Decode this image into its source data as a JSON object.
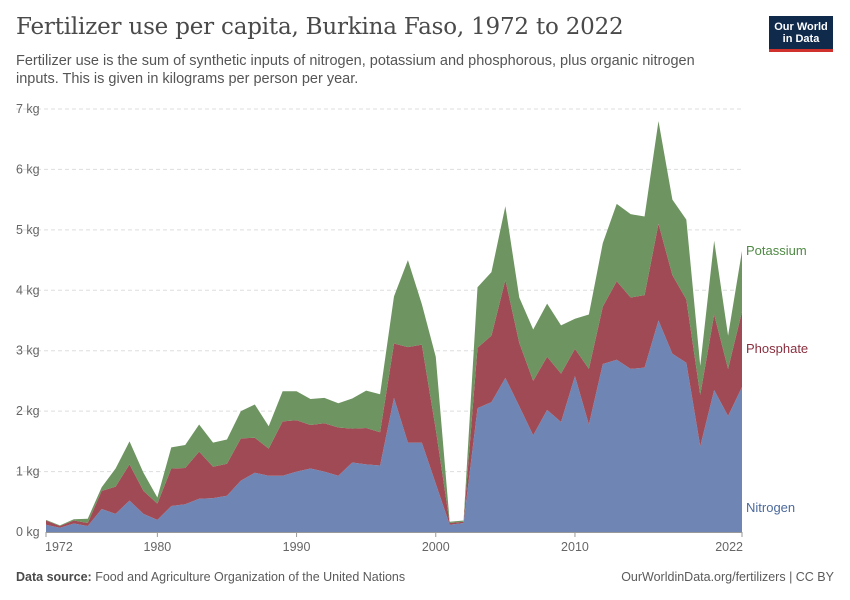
{
  "header": {
    "title": "Fertilizer use per capita, Burkina Faso, 1972 to 2022",
    "subtitle": "Fertilizer use is the sum of synthetic inputs of nitrogen, potassium and phosphorous, plus organic nitrogen inputs. This is given in kilograms per person per year.",
    "logo_line1": "Our World",
    "logo_line2": "in Data"
  },
  "footer": {
    "source_label": "Data source:",
    "source_text": "Food and Agriculture Organization of the United Nations",
    "url": "OurWorldinData.org/fertilizers | CC BY"
  },
  "colors": {
    "Nitrogen": "#6f86b4",
    "Phosphate": "#a04a55",
    "Potassium": "#6e9461",
    "NitrogenLabel": "#4c6a9c",
    "PhosphateLabel": "#8a2f3f",
    "PotassiumLabel": "#4f8a44",
    "grid": "#dddddd"
  },
  "chart_data": {
    "type": "area",
    "stacked": true,
    "title": "Fertilizer use per capita, Burkina Faso, 1972 to 2022",
    "xlabel": "",
    "ylabel": "",
    "xlim": [
      1972,
      2022
    ],
    "ylim": [
      0,
      7
    ],
    "y_ticks": [
      0,
      1,
      2,
      3,
      4,
      5,
      6,
      7
    ],
    "y_tick_labels": [
      "0 kg",
      "1 kg",
      "2 kg",
      "3 kg",
      "4 kg",
      "5 kg",
      "6 kg",
      "7 kg"
    ],
    "x_ticks": [
      1972,
      1980,
      1990,
      2000,
      2010,
      2022
    ],
    "x_tick_labels": [
      "1972",
      "1980",
      "1990",
      "2000",
      "2010",
      "2022"
    ],
    "x": [
      1972,
      1973,
      1974,
      1975,
      1976,
      1977,
      1978,
      1979,
      1980,
      1981,
      1982,
      1983,
      1984,
      1985,
      1986,
      1987,
      1988,
      1989,
      1990,
      1991,
      1992,
      1993,
      1994,
      1995,
      1996,
      1997,
      1998,
      1999,
      2000,
      2001,
      2002,
      2003,
      2004,
      2005,
      2006,
      2007,
      2008,
      2009,
      2010,
      2011,
      2012,
      2013,
      2014,
      2015,
      2016,
      2017,
      2018,
      2019,
      2020,
      2021,
      2022
    ],
    "series": [
      {
        "name": "Nitrogen",
        "values": [
          0.12,
          0.07,
          0.14,
          0.1,
          0.38,
          0.3,
          0.52,
          0.3,
          0.2,
          0.43,
          0.46,
          0.55,
          0.56,
          0.6,
          0.85,
          0.98,
          0.93,
          0.93,
          1.0,
          1.05,
          1.0,
          0.93,
          1.15,
          1.12,
          1.1,
          2.22,
          1.48,
          1.48,
          0.8,
          0.12,
          0.15,
          2.05,
          2.15,
          2.55,
          2.08,
          1.6,
          2.02,
          1.82,
          2.58,
          1.78,
          2.78,
          2.85,
          2.7,
          2.72,
          3.5,
          2.95,
          2.8,
          1.42,
          2.35,
          1.92,
          2.4
        ]
      },
      {
        "name": "Phosphate",
        "values": [
          0.07,
          0.03,
          0.05,
          0.05,
          0.3,
          0.45,
          0.6,
          0.38,
          0.27,
          0.62,
          0.6,
          0.78,
          0.52,
          0.53,
          0.7,
          0.58,
          0.45,
          0.9,
          0.85,
          0.72,
          0.8,
          0.8,
          0.56,
          0.6,
          0.55,
          0.9,
          1.58,
          1.62,
          0.9,
          0.03,
          0.02,
          1.0,
          1.1,
          1.62,
          1.05,
          0.9,
          0.88,
          0.8,
          0.45,
          0.92,
          0.95,
          1.3,
          1.18,
          1.2,
          1.6,
          1.3,
          1.05,
          0.85,
          1.25,
          0.78,
          1.25
        ]
      },
      {
        "name": "Potassium",
        "values": [
          0.01,
          0.01,
          0.02,
          0.07,
          0.06,
          0.3,
          0.38,
          0.3,
          0.1,
          0.35,
          0.38,
          0.45,
          0.4,
          0.4,
          0.45,
          0.55,
          0.37,
          0.5,
          0.48,
          0.43,
          0.42,
          0.4,
          0.5,
          0.62,
          0.63,
          0.78,
          1.44,
          0.67,
          1.2,
          0.02,
          0.02,
          1.0,
          1.05,
          1.22,
          0.75,
          0.85,
          0.88,
          0.8,
          0.5,
          0.9,
          1.05,
          1.28,
          1.38,
          1.3,
          1.7,
          1.25,
          1.32,
          0.48,
          1.22,
          0.55,
          1.0
        ]
      }
    ],
    "series_labels": [
      {
        "name": "Potassium",
        "text": "Potassium"
      },
      {
        "name": "Phosphate",
        "text": "Phosphate"
      },
      {
        "name": "Nitrogen",
        "text": "Nitrogen"
      }
    ]
  }
}
